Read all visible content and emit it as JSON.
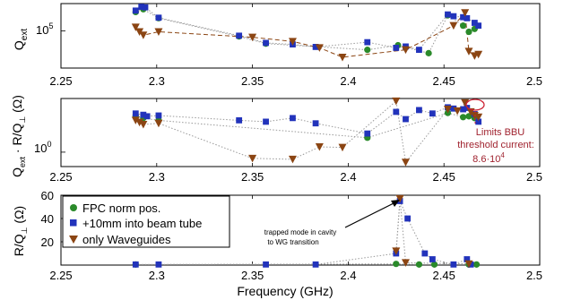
{
  "chart_data": [
    {
      "type": "scatter",
      "panel": "top",
      "ylabel": "Q_ext",
      "yscale": "log",
      "ytick_labels": [
        "10^5"
      ],
      "ylim": [
        15000,
        400000
      ],
      "xlim": [
        2.25,
        2.5
      ],
      "x_tick_labels": [
        "2.25",
        "2.3",
        "2.35",
        "2.4",
        "2.45",
        "2.5"
      ],
      "x_ticks": [
        2.25,
        2.3,
        2.35,
        2.4,
        2.45,
        2.5
      ],
      "series": [
        {
          "name": "FPC norm pos.",
          "color": "#2a8a2a",
          "marker": "circle",
          "line": "dotted-gray",
          "points": [
            [
              2.289,
              260000
            ],
            [
              2.293,
              300000
            ],
            [
              2.301,
              190000
            ],
            [
              2.343,
              75000
            ],
            [
              2.357,
              52000
            ],
            [
              2.41,
              38000
            ],
            [
              2.426,
              48000
            ],
            [
              2.442,
              32000
            ],
            [
              2.452,
              220000
            ],
            [
              2.46,
              130000
            ],
            [
              2.463,
              95000
            ],
            [
              2.466,
              110000
            ]
          ]
        },
        {
          "name": "+10mm into beam tube",
          "color": "#2233bb",
          "marker": "square",
          "line": "dotted-gray",
          "points": [
            [
              2.289,
              280000
            ],
            [
              2.292,
              340000
            ],
            [
              2.294,
              330000
            ],
            [
              2.301,
              195000
            ],
            [
              2.343,
              78000
            ],
            [
              2.357,
              54000
            ],
            [
              2.371,
              50000
            ],
            [
              2.383,
              44000
            ],
            [
              2.41,
              56000
            ],
            [
              2.425,
              42000
            ],
            [
              2.43,
              45000
            ],
            [
              2.437,
              38000
            ],
            [
              2.452,
              230000
            ],
            [
              2.455,
              210000
            ],
            [
              2.46,
              200000
            ],
            [
              2.462,
              190000
            ],
            [
              2.466,
              150000
            ],
            [
              2.468,
              130000
            ]
          ]
        },
        {
          "name": "only Waveguides",
          "color": "#8b4513",
          "marker": "triangle-down",
          "line": "dashed-brown",
          "points": [
            [
              2.289,
              120000
            ],
            [
              2.291,
              95000
            ],
            [
              2.293,
              80000
            ],
            [
              2.301,
              95000
            ],
            [
              2.35,
              72000
            ],
            [
              2.371,
              58000
            ],
            [
              2.385,
              42000
            ],
            [
              2.397,
              26000
            ],
            [
              2.43,
              38000
            ],
            [
              2.455,
              130000
            ],
            [
              2.461,
              250000
            ],
            [
              2.463,
              35000
            ],
            [
              2.466,
              28000
            ],
            [
              2.468,
              30000
            ]
          ]
        }
      ]
    },
    {
      "type": "scatter",
      "panel": "middle",
      "ylabel": "Q_ext · R/Q_⊥ (Ω)",
      "yscale": "log",
      "ytick_labels": [
        "10^0"
      ],
      "ylim": [
        0.2,
        400
      ],
      "xlim": [
        2.25,
        2.5
      ],
      "x_tick_labels": [
        "2.25",
        "2.3",
        "2.35",
        "2.4",
        "2.45",
        "2.5"
      ],
      "x_ticks": [
        2.25,
        2.3,
        2.35,
        2.4,
        2.45,
        2.5
      ],
      "annotation": {
        "text_lines": [
          "Limits BBU",
          "threshold current:",
          "8.6·10^4"
        ],
        "point": [
          2.464,
          120
        ]
      },
      "series": [
        {
          "name": "FPC norm pos.",
          "color": "#2a8a2a",
          "marker": "circle",
          "points": [
            [
              2.289,
              60
            ],
            [
              2.293,
              45
            ],
            [
              2.301,
              35
            ],
            [
              2.41,
              5
            ],
            [
              2.452,
              80
            ],
            [
              2.46,
              50
            ],
            [
              2.463,
              55
            ],
            [
              2.466,
              45
            ]
          ]
        },
        {
          "name": "+10mm into beam tube",
          "color": "#2233bb",
          "marker": "square",
          "points": [
            [
              2.289,
              75
            ],
            [
              2.293,
              65
            ],
            [
              2.295,
              55
            ],
            [
              2.301,
              60
            ],
            [
              2.343,
              35
            ],
            [
              2.357,
              30
            ],
            [
              2.371,
              45
            ],
            [
              2.383,
              25
            ],
            [
              2.41,
              8
            ],
            [
              2.425,
              90
            ],
            [
              2.43,
              40
            ],
            [
              2.437,
              110
            ],
            [
              2.444,
              75
            ],
            [
              2.452,
              150
            ],
            [
              2.455,
              130
            ],
            [
              2.46,
              120
            ],
            [
              2.462,
              140
            ],
            [
              2.466,
              70
            ],
            [
              2.468,
              30
            ]
          ]
        },
        {
          "name": "only Waveguides",
          "color": "#8b4513",
          "marker": "triangle-down",
          "points": [
            [
              2.289,
              35
            ],
            [
              2.291,
              28
            ],
            [
              2.293,
              22
            ],
            [
              2.301,
              25
            ],
            [
              2.35,
              0.5
            ],
            [
              2.371,
              0.45
            ],
            [
              2.385,
              1.8
            ],
            [
              2.397,
              1.7
            ],
            [
              2.425,
              300
            ],
            [
              2.43,
              0.32
            ],
            [
              2.452,
              120
            ],
            [
              2.457,
              100
            ],
            [
              2.461,
              250
            ],
            [
              2.464,
              90
            ],
            [
              2.466,
              60
            ],
            [
              2.468,
              50
            ]
          ]
        }
      ]
    },
    {
      "type": "scatter",
      "panel": "bottom",
      "ylabel": "R/Q_⊥ (Ω)",
      "yscale": "linear",
      "ylim": [
        0,
        60
      ],
      "y_ticks": [
        0,
        20,
        40,
        60
      ],
      "y_tick_labels": [
        "0",
        "20",
        "40",
        "60"
      ],
      "xlim": [
        2.25,
        2.5
      ],
      "x_ticks": [
        2.25,
        2.3,
        2.35,
        2.4,
        2.45,
        2.5
      ],
      "x_tick_labels": [
        "2.25",
        "2.3",
        "2.35",
        "2.4",
        "2.45",
        "2.5"
      ],
      "xlabel": "Frequency (GHz)",
      "annotation": {
        "text_lines": [
          "trapped mode in cavity",
          "to WG transition"
        ],
        "point": [
          2.427,
          57
        ]
      },
      "legend": {
        "placement": "top-left",
        "entries": [
          "FPC norm pos.",
          "+10mm into beam tube",
          "only Waveguides"
        ]
      },
      "series": [
        {
          "name": "FPC norm pos.",
          "color": "#2a8a2a",
          "marker": "circle",
          "points": [
            [
              2.289,
              0.5
            ],
            [
              2.425,
              1
            ],
            [
              2.437,
              0.5
            ],
            [
              2.445,
              0.5
            ],
            [
              2.463,
              0.5
            ],
            [
              2.467,
              0.5
            ]
          ]
        },
        {
          "name": "+10mm into beam tube",
          "color": "#2233bb",
          "marker": "square",
          "points": [
            [
              2.289,
              0.5
            ],
            [
              2.301,
              0.5
            ],
            [
              2.357,
              0.5
            ],
            [
              2.383,
              0.5
            ],
            [
              2.425,
              10
            ],
            [
              2.427,
              55
            ],
            [
              2.431,
              40
            ],
            [
              2.44,
              10
            ],
            [
              2.444,
              5
            ],
            [
              2.455,
              0.5
            ],
            [
              2.462,
              5
            ],
            [
              2.464,
              0.5
            ]
          ]
        },
        {
          "name": "only Waveguides",
          "color": "#8b4513",
          "marker": "triangle-down",
          "points": [
            [
              2.425,
              12
            ],
            [
              2.427,
              57
            ],
            [
              2.43,
              2
            ],
            [
              2.463,
              1
            ]
          ]
        }
      ]
    }
  ],
  "labels": {
    "top_ylabel_main": "Q",
    "top_ylabel_sub": "ext",
    "top_ytick_base": "10",
    "top_ytick_exp": "5",
    "mid_ylabel_a": "Q",
    "mid_ylabel_a_sub": "ext",
    "mid_ylabel_b": " · R/Q",
    "mid_ylabel_b_sub": "⊥",
    "mid_ylabel_c": " (Ω)",
    "mid_ytick_base": "10",
    "mid_ytick_exp": "0",
    "bot_ylabel_a": "R/Q",
    "bot_ylabel_sub": "⊥",
    "bot_ylabel_b": " (Ω)",
    "xlabel": "Frequency (GHz)",
    "note_trapped_1": "trapped mode in cavity",
    "note_trapped_2": "to WG transition",
    "note_bbu_1": "Limits BBU",
    "note_bbu_2": "threshold current:",
    "note_bbu_3": "8.6·10",
    "note_bbu_exp": "4",
    "legend_1": "FPC norm pos.",
    "legend_2": "+10mm into beam tube",
    "legend_3": "only Waveguides"
  }
}
